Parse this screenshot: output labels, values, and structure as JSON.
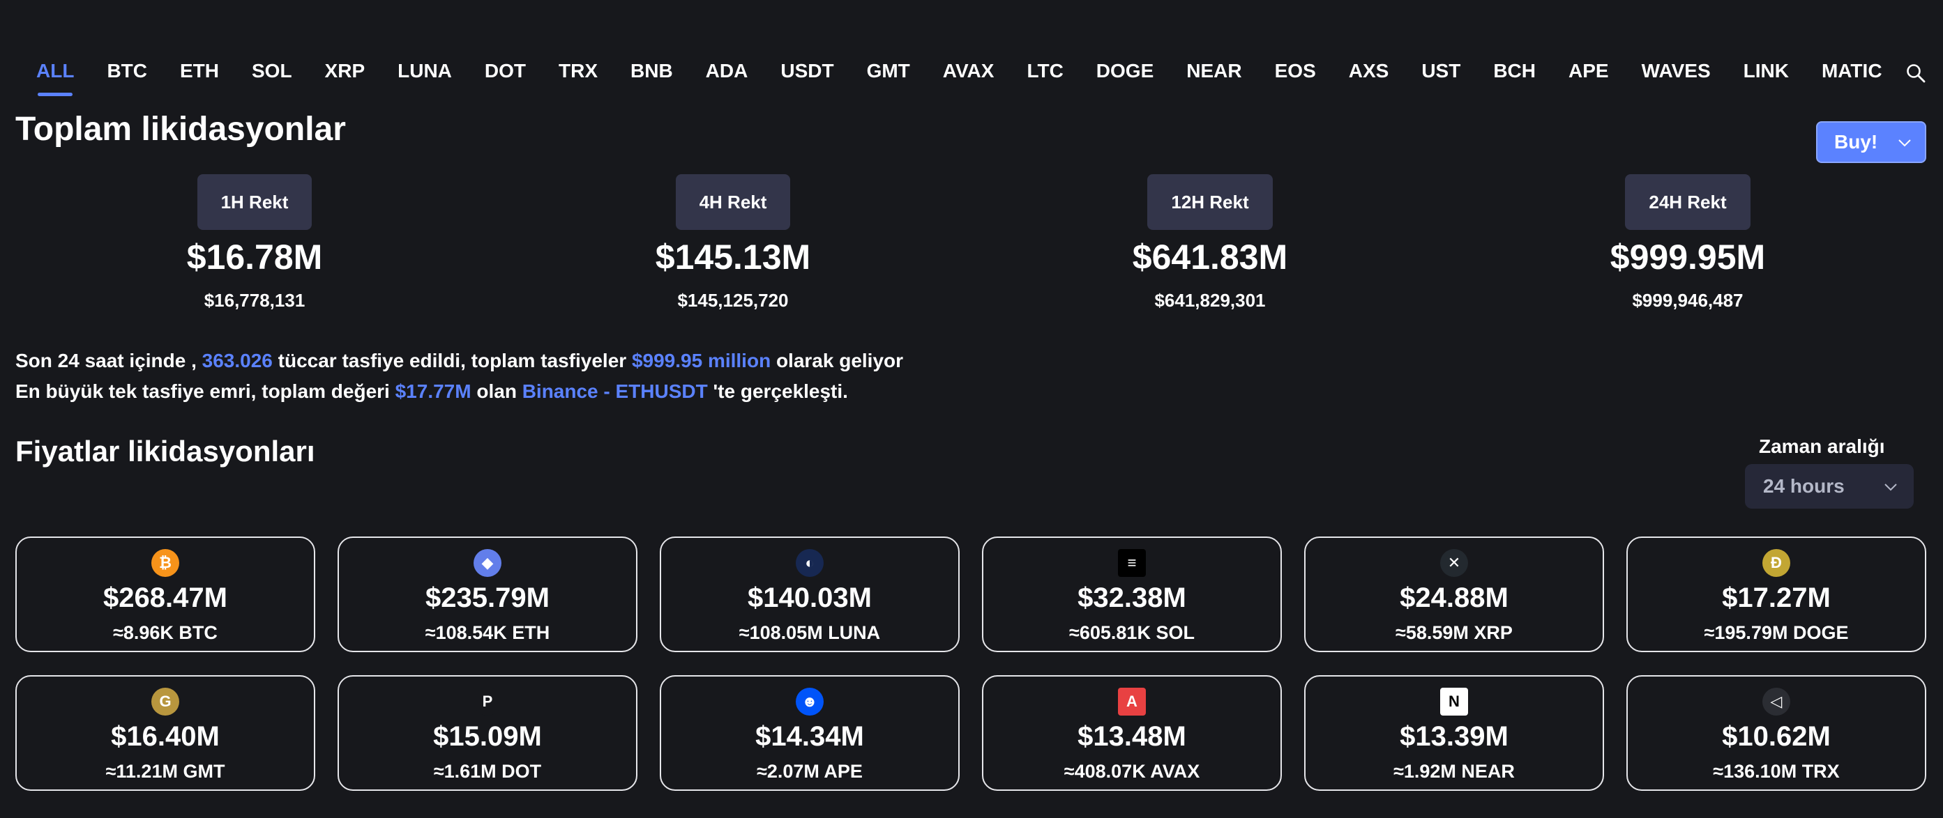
{
  "tabs": [
    "ALL",
    "BTC",
    "ETH",
    "SOL",
    "XRP",
    "LUNA",
    "DOT",
    "TRX",
    "BNB",
    "ADA",
    "USDT",
    "GMT",
    "AVAX",
    "LTC",
    "DOGE",
    "NEAR",
    "EOS",
    "AXS",
    "UST",
    "BCH",
    "APE",
    "WAVES",
    "LINK",
    "MATIC"
  ],
  "active_tab": "ALL",
  "title": "Toplam likidasyonlar",
  "buy_label": "Buy!",
  "rekt": [
    {
      "label": "1H Rekt",
      "big": "$16.78M",
      "small": "$16,778,131"
    },
    {
      "label": "4H Rekt",
      "big": "$145.13M",
      "small": "$145,125,720"
    },
    {
      "label": "12H Rekt",
      "big": "$641.83M",
      "small": "$641,829,301"
    },
    {
      "label": "24H Rekt",
      "big": "$999.95M",
      "small": "$999,946,487"
    }
  ],
  "summary": {
    "line1_a": "Son 24 saat içinde , ",
    "line1_traders": "363.026",
    "line1_b": " tüccar tasfiye edildi, toplam tasfiyeler ",
    "line1_total": "$999.95 million",
    "line1_c": " olarak geliyor",
    "line2_a": "En büyük tek tasfiye emri, toplam değeri ",
    "line2_value": "$17.77M",
    "line2_b": " olan ",
    "line2_exchange": "Binance - ETHUSDT",
    "line2_c": " 'te gerçekleşti."
  },
  "subtitle": "Fiyatlar likidasyonları",
  "range": {
    "label": "Zaman aralığı",
    "value": "24 hours"
  },
  "cards": [
    {
      "icon": "btc-icon",
      "glyph": "₿",
      "color": "#f7931a",
      "value": "$268.47M",
      "amount": "≈8.96K BTC"
    },
    {
      "icon": "eth-icon",
      "glyph": "◆",
      "color": "#627eea",
      "value": "$235.79M",
      "amount": "≈108.54K ETH"
    },
    {
      "icon": "luna-icon",
      "glyph": "◐",
      "color": "#172852",
      "value": "$140.03M",
      "amount": "≈108.05M LUNA"
    },
    {
      "icon": "sol-icon",
      "glyph": "≡",
      "color": "#000000",
      "value": "$32.38M",
      "amount": "≈605.81K SOL"
    },
    {
      "icon": "xrp-icon",
      "glyph": "✕",
      "color": "#23292f",
      "value": "$24.88M",
      "amount": "≈58.59M XRP"
    },
    {
      "icon": "doge-icon",
      "glyph": "Ð",
      "color": "#c2a633",
      "value": "$17.27M",
      "amount": "≈195.79M DOGE"
    },
    {
      "icon": "gmt-icon",
      "glyph": "G",
      "color": "#b8963e",
      "value": "$16.40M",
      "amount": "≈11.21M GMT"
    },
    {
      "icon": "dot-icon",
      "glyph": "P",
      "color": "#17181c",
      "value": "$15.09M",
      "amount": "≈1.61M DOT"
    },
    {
      "icon": "ape-icon",
      "glyph": "☻",
      "color": "#0054f9",
      "value": "$14.34M",
      "amount": "≈2.07M APE"
    },
    {
      "icon": "avax-icon",
      "glyph": "A",
      "color": "#e84142",
      "value": "$13.48M",
      "amount": "≈408.07K AVAX"
    },
    {
      "icon": "near-icon",
      "glyph": "N",
      "color": "#ffffff",
      "value": "$13.39M",
      "amount": "≈1.92M NEAR"
    },
    {
      "icon": "trx-icon",
      "glyph": "◁",
      "color": "#2b2d33",
      "value": "$10.62M",
      "amount": "≈136.10M TRX"
    }
  ]
}
